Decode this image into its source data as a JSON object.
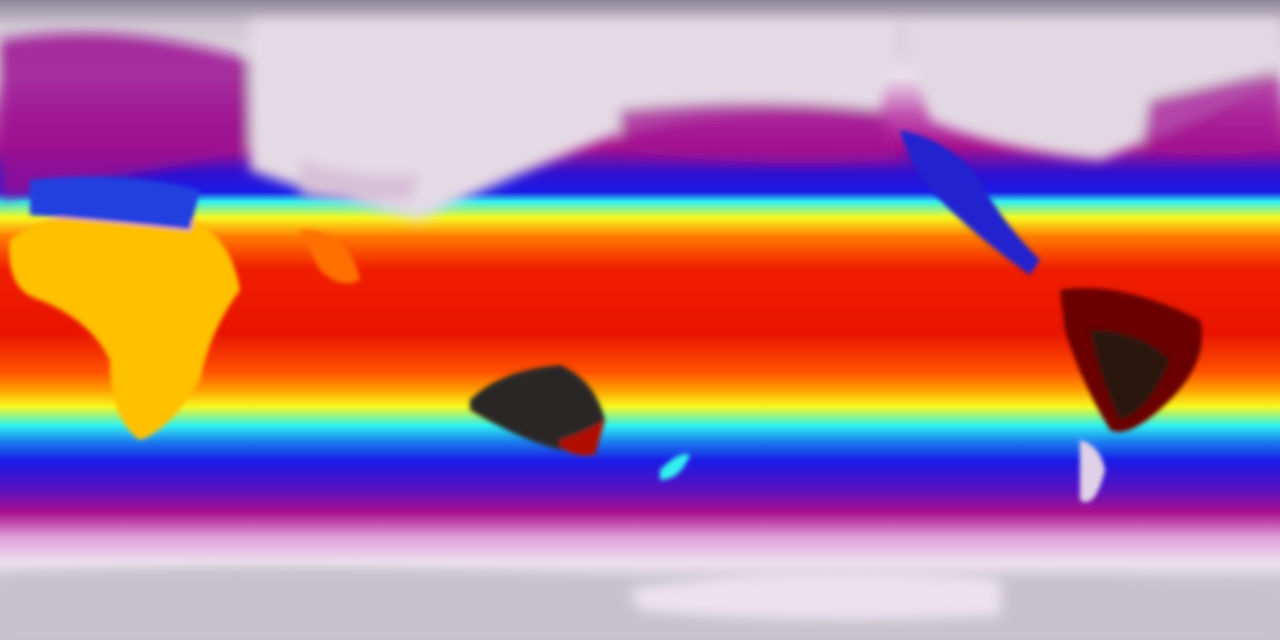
{
  "map": {
    "projection": "equirectangular",
    "colors": {
      "polar_gray": "#8d8898",
      "cold_white": "#e6dbe6",
      "magenta": "#a8108e",
      "purple": "#5a10c0",
      "blue": "#1a1ae6",
      "cyan": "#30f0f0",
      "yellow": "#f8f820",
      "orange": "#ff7a00",
      "red": "#f01e00",
      "dark_red": "#700000",
      "hot_black": "#2a2626",
      "antarctic_gray": "#c4c2c8"
    }
  }
}
